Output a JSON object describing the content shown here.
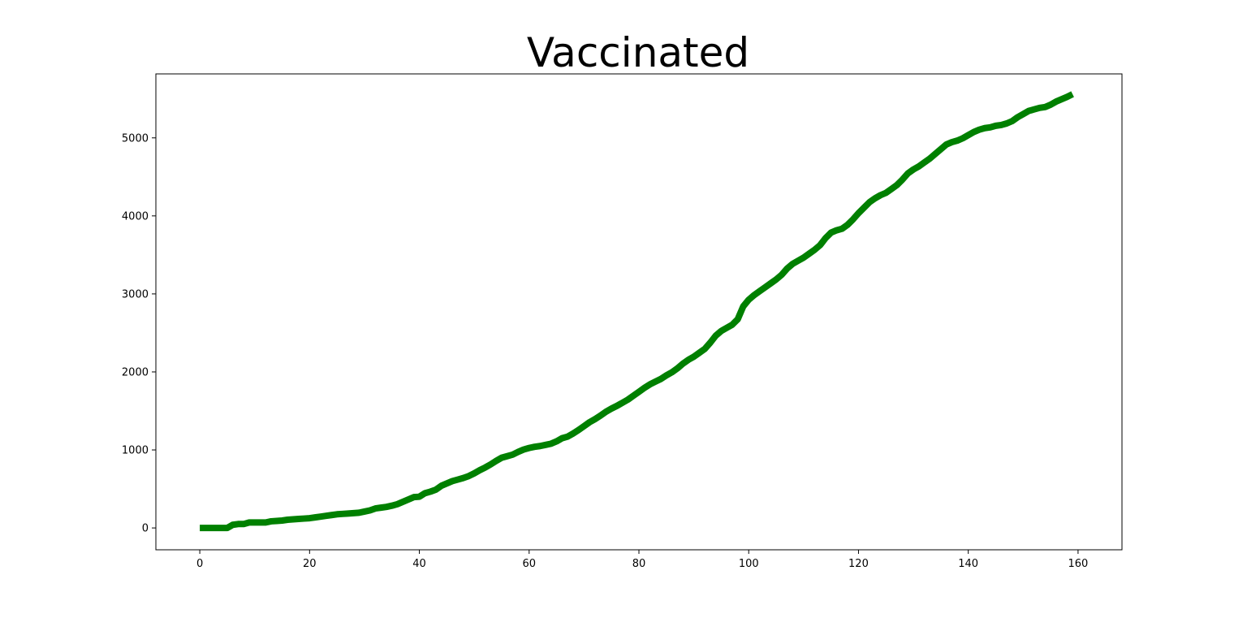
{
  "chart_data": {
    "type": "line",
    "title": "Vaccinated",
    "xlabel": "",
    "ylabel": "",
    "xlim": [
      -8,
      168
    ],
    "ylim": [
      -280,
      5820
    ],
    "x_ticks": [
      0,
      20,
      40,
      60,
      80,
      100,
      120,
      140,
      160
    ],
    "y_ticks": [
      0,
      1000,
      2000,
      3000,
      4000,
      5000
    ],
    "grid": false,
    "legend": "none",
    "series": [
      {
        "color": "#008000",
        "x": [
          0,
          1,
          2,
          3,
          4,
          5,
          6,
          7,
          8,
          9,
          10,
          11,
          12,
          13,
          14,
          15,
          16,
          17,
          18,
          19,
          20,
          21,
          22,
          23,
          24,
          25,
          26,
          27,
          28,
          29,
          30,
          31,
          32,
          33,
          34,
          35,
          36,
          37,
          38,
          39,
          40,
          41,
          42,
          43,
          44,
          45,
          46,
          47,
          48,
          49,
          50,
          51,
          52,
          53,
          54,
          55,
          56,
          57,
          58,
          59,
          60,
          61,
          62,
          63,
          64,
          65,
          66,
          67,
          68,
          69,
          70,
          71,
          72,
          73,
          74,
          75,
          76,
          77,
          78,
          79,
          80,
          81,
          82,
          83,
          84,
          85,
          86,
          87,
          88,
          89,
          90,
          91,
          92,
          93,
          94,
          95,
          96,
          97,
          98,
          99,
          100,
          101,
          102,
          103,
          104,
          105,
          106,
          107,
          108,
          109,
          110,
          111,
          112,
          113,
          114,
          115,
          116,
          117,
          118,
          119,
          120,
          121,
          122,
          123,
          124,
          125,
          126,
          127,
          128,
          129,
          130,
          131,
          132,
          133,
          134,
          135,
          136,
          137,
          138,
          139,
          140,
          141,
          142,
          143,
          144,
          145,
          146,
          147,
          148,
          149,
          150,
          151,
          152,
          153,
          154,
          155,
          156,
          157,
          158,
          159
        ],
        "y": [
          0,
          0,
          0,
          0,
          0,
          0,
          40,
          50,
          50,
          70,
          70,
          70,
          70,
          85,
          90,
          95,
          105,
          110,
          115,
          120,
          125,
          135,
          145,
          155,
          165,
          175,
          180,
          185,
          190,
          195,
          210,
          225,
          250,
          260,
          270,
          285,
          305,
          335,
          365,
          395,
          400,
          445,
          465,
          490,
          540,
          570,
          600,
          620,
          640,
          665,
          700,
          740,
          775,
          815,
          860,
          900,
          920,
          940,
          975,
          1005,
          1025,
          1040,
          1050,
          1065,
          1080,
          1110,
          1150,
          1170,
          1210,
          1255,
          1305,
          1355,
          1395,
          1440,
          1490,
          1530,
          1565,
          1605,
          1645,
          1695,
          1745,
          1795,
          1840,
          1875,
          1910,
          1955,
          1995,
          2045,
          2105,
          2155,
          2195,
          2245,
          2295,
          2375,
          2465,
          2525,
          2565,
          2605,
          2675,
          2840,
          2925,
          2985,
          3035,
          3085,
          3135,
          3185,
          3245,
          3325,
          3385,
          3425,
          3465,
          3515,
          3565,
          3625,
          3715,
          3785,
          3815,
          3835,
          3885,
          3955,
          4035,
          4105,
          4175,
          4225,
          4265,
          4295,
          4345,
          4395,
          4465,
          4545,
          4595,
          4635,
          4685,
          4735,
          4795,
          4855,
          4915,
          4945,
          4965,
          4995,
          5035,
          5075,
          5105,
          5125,
          5135,
          5155,
          5165,
          5185,
          5215,
          5265,
          5305,
          5345,
          5365,
          5385,
          5395,
          5425,
          5465,
          5495,
          5525,
          5560
        ]
      }
    ]
  }
}
